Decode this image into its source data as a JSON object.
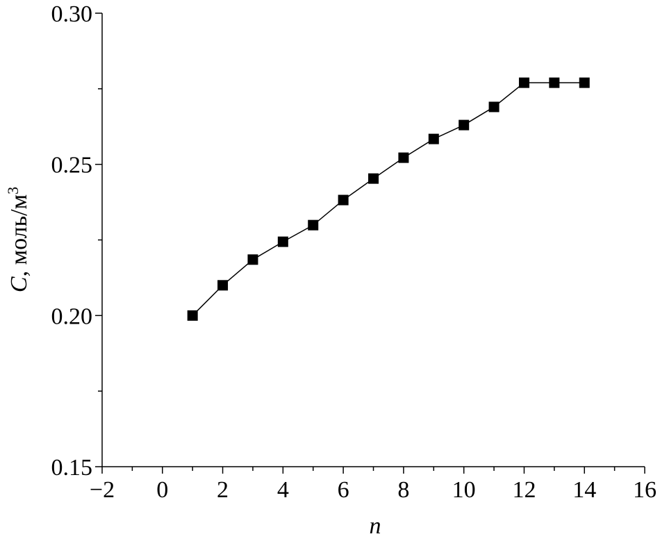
{
  "chart_data": {
    "type": "line",
    "xlabel": "n",
    "ylabel": {
      "symbol": "C",
      "unit": ", моль/м",
      "exponent": "3"
    },
    "x": [
      1,
      2,
      3,
      4,
      5,
      6,
      7,
      8,
      9,
      10,
      11,
      12,
      13,
      14
    ],
    "values": [
      0.2,
      0.21,
      0.2185,
      0.2244,
      0.2299,
      0.2382,
      0.2453,
      0.2522,
      0.2584,
      0.263,
      0.269,
      0.277,
      0.277,
      0.277
    ],
    "color": "#000000",
    "marker": "square",
    "xlim": [
      -2,
      16
    ],
    "ylim": [
      0.15,
      0.3
    ],
    "xticks": [
      {
        "value": -2,
        "label": "−2"
      },
      0,
      2,
      4,
      6,
      8,
      10,
      12,
      14,
      16
    ],
    "xminorticks": [
      -1,
      1,
      3,
      5,
      7,
      9,
      11,
      13,
      15
    ],
    "yticks": [
      {
        "value": 0.15,
        "label": "0.15"
      },
      {
        "value": 0.2,
        "label": "0.20"
      },
      {
        "value": 0.25,
        "label": "0.25"
      },
      {
        "value": 0.3,
        "label": "0.30"
      }
    ],
    "yminorticks": [
      0.175,
      0.225,
      0.275
    ],
    "grid": false
  }
}
